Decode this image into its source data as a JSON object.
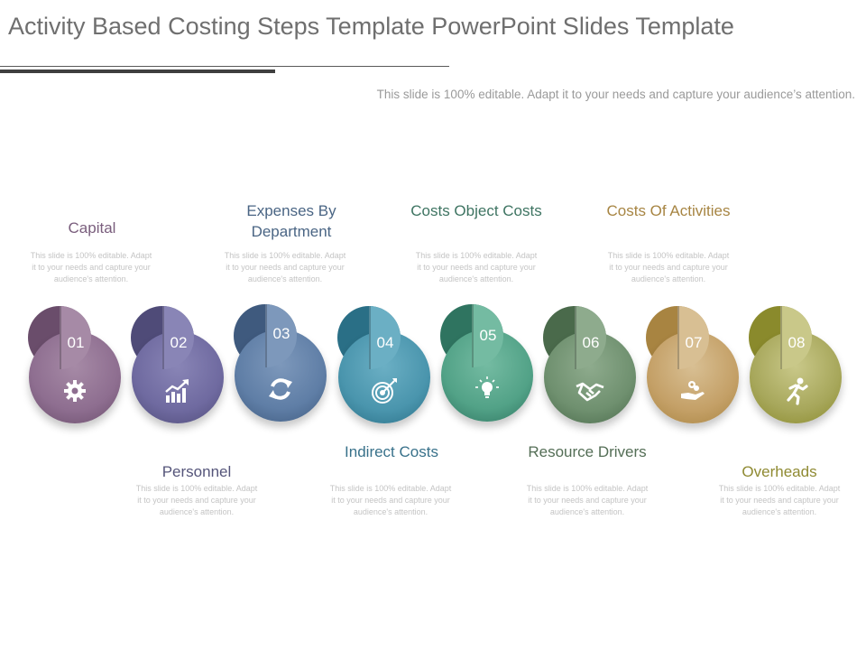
{
  "title": "Activity Based Costing Steps Template PowerPoint Slides Template",
  "subtitle": "This slide is 100% editable. Adapt it to your needs and capture your audience’s attention.",
  "steps": [
    {
      "number": "01",
      "title": "Capital",
      "desc": "This slide is 100% editable. Adapt it to your needs and capture your audience's attention.",
      "icon": "gear-icon",
      "colors": {
        "back": "#6a4d6b",
        "main": "#8e6e90",
        "half": "#a68aa6",
        "title": "#7a5e7d"
      }
    },
    {
      "number": "02",
      "title": "Personnel",
      "desc": "This slide is 100% editable. Adapt it to your needs and capture your audience's attention.",
      "icon": "growth-chart-icon",
      "colors": {
        "back": "#4f4b78",
        "main": "#6f6aa0",
        "half": "#8985b6",
        "title": "#55557a"
      }
    },
    {
      "number": "03",
      "title": "Expenses By Department",
      "desc": "This slide is 100% editable. Adapt it to your needs and capture your audience's attention.",
      "icon": "refresh-icon",
      "colors": {
        "back": "#3f5a7e",
        "main": "#5f7ea6",
        "half": "#7d98bb",
        "title": "#4a6584"
      }
    },
    {
      "number": "04",
      "title": "Indirect Costs",
      "desc": "This slide is 100% editable. Adapt it to your needs and capture your audience's attention.",
      "icon": "target-icon",
      "colors": {
        "back": "#2a6f86",
        "main": "#4a95ad",
        "half": "#6bafc4",
        "title": "#38718a"
      }
    },
    {
      "number": "05",
      "title": "Costs Object Costs",
      "desc": "This slide is 100% editable. Adapt it to your needs and capture your audience's attention.",
      "icon": "lightbulb-icon",
      "colors": {
        "back": "#2f7460",
        "main": "#52a287",
        "half": "#74bba2",
        "title": "#3e7462"
      }
    },
    {
      "number": "06",
      "title": "Resource Drivers",
      "desc": "This slide is 100% editable. Adapt it to your needs and capture your audience's attention.",
      "icon": "handshake-icon",
      "colors": {
        "back": "#4a6a4b",
        "main": "#6f906f",
        "half": "#8eab8d",
        "title": "#546e56"
      }
    },
    {
      "number": "07",
      "title": "Costs Of Activities",
      "desc": "This slide is 100% editable. Adapt it to your needs and capture your audience's attention.",
      "icon": "money-hand-icon",
      "colors": {
        "back": "#a88441",
        "main": "#c4a067",
        "half": "#d8bf93",
        "title": "#a78543"
      }
    },
    {
      "number": "08",
      "title": "Overheads",
      "desc": "This slide is 100% editable. Adapt it to your needs and capture your audience's attention.",
      "icon": "running-figure-icon",
      "colors": {
        "back": "#8a8a2c",
        "main": "#a7a75b",
        "half": "#c9c889",
        "title": "#8f8a32"
      }
    }
  ]
}
